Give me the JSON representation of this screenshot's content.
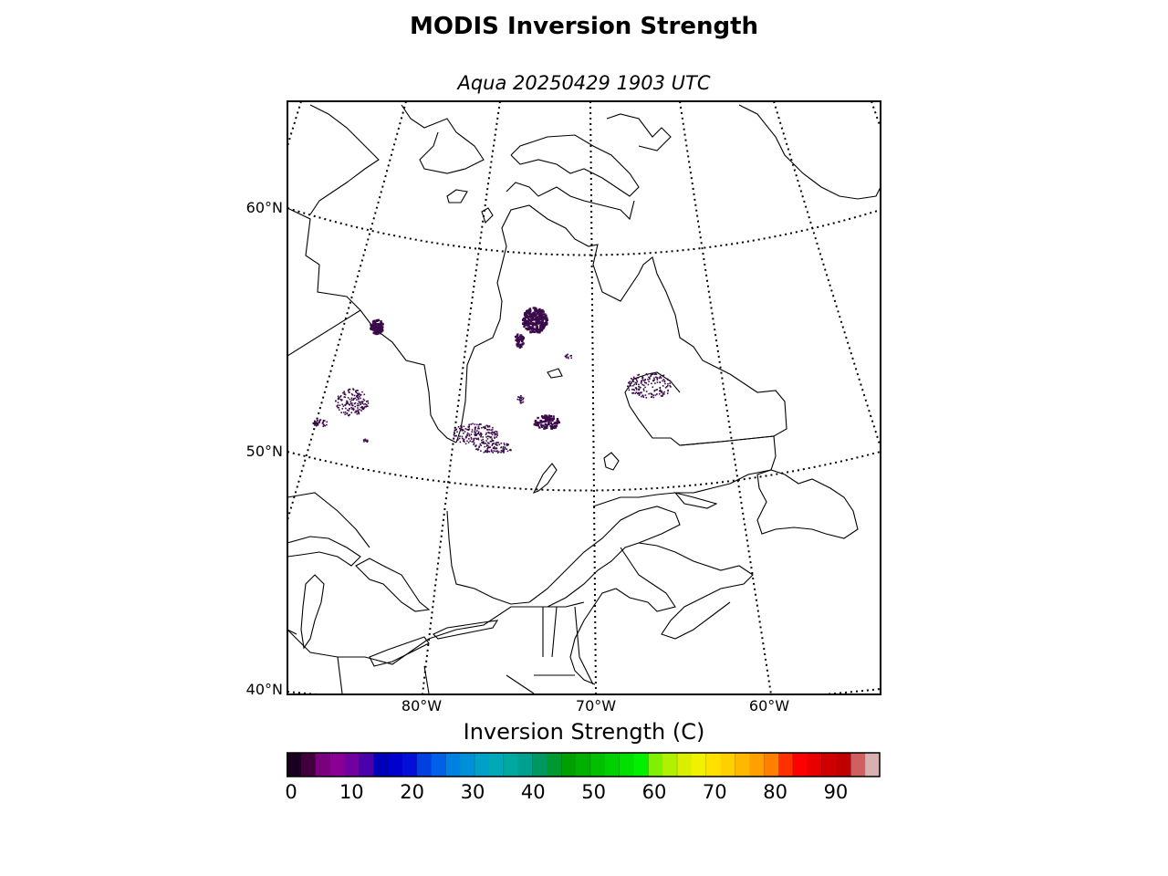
{
  "title": "MODIS Inversion Strength",
  "subtitle": "Aqua 20250429 1903 UTC",
  "map": {
    "lat_labels": [
      "60°N",
      "50°N",
      "40°N"
    ],
    "lon_labels": [
      "80°W",
      "70°W",
      "60°W"
    ],
    "graticule_style": "dotted",
    "data_color": "#3a0a4a"
  },
  "colorbar": {
    "label": "Inversion Strength (C)",
    "ticks": [
      "0",
      "10",
      "20",
      "30",
      "40",
      "50",
      "60",
      "70",
      "80",
      "90"
    ],
    "range": [
      0,
      98
    ],
    "colors": [
      "#1a0020",
      "#40003c",
      "#7a007f",
      "#8a0095",
      "#7000a0",
      "#4a00aa",
      "#0000b8",
      "#0000cc",
      "#0010d8",
      "#0040e0",
      "#0060e8",
      "#0080e0",
      "#0090d8",
      "#00a0c8",
      "#00a8b8",
      "#00a8a0",
      "#00a090",
      "#009860",
      "#009830",
      "#00a000",
      "#00b000",
      "#00c000",
      "#00d000",
      "#00e000",
      "#00f000",
      "#80f000",
      "#b0f000",
      "#d8f000",
      "#f0f000",
      "#ffe000",
      "#ffd000",
      "#ffb800",
      "#ffa000",
      "#ff8000",
      "#ff3000",
      "#ff0000",
      "#e80000",
      "#d00000",
      "#c00000",
      "#d06060",
      "#d8b0b0"
    ]
  }
}
